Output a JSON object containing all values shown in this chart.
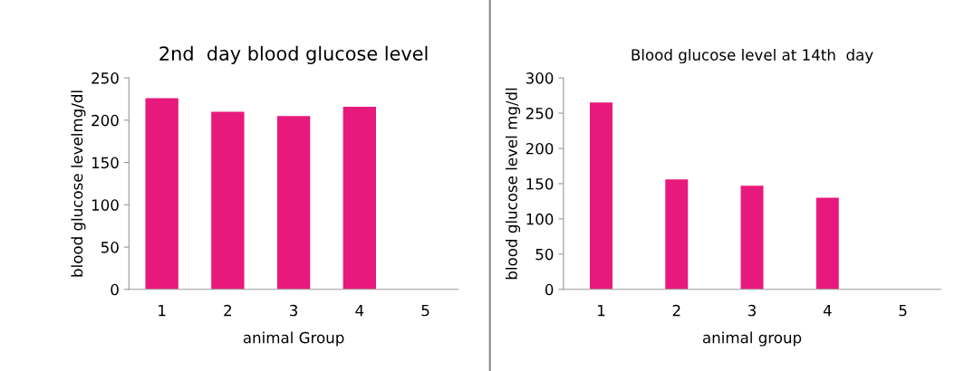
{
  "chart_data": [
    {
      "type": "bar",
      "title": "2nd  day blood glucose level",
      "xlabel": "animal Group",
      "ylabel": "blood glucose levelmg/dl",
      "categories": [
        "1",
        "2",
        "3",
        "4",
        "5"
      ],
      "values": [
        226,
        210,
        205,
        216,
        null
      ],
      "color": "#e8197d",
      "ylim": [
        0,
        250
      ],
      "yticks": [
        0,
        50,
        100,
        150,
        200,
        250
      ],
      "grid": false,
      "legend": false
    },
    {
      "type": "bar",
      "title": "Blood glucose level at 14th  day",
      "xlabel": "animal group",
      "ylabel": "blood glucose level mg/dl",
      "categories": [
        "1",
        "2",
        "3",
        "4",
        "5"
      ],
      "values": [
        265,
        156,
        147,
        130,
        null
      ],
      "color": "#e8197d",
      "ylim": [
        0,
        300
      ],
      "yticks": [
        0,
        50,
        100,
        150,
        200,
        250,
        300
      ],
      "grid": false,
      "legend": false
    }
  ]
}
